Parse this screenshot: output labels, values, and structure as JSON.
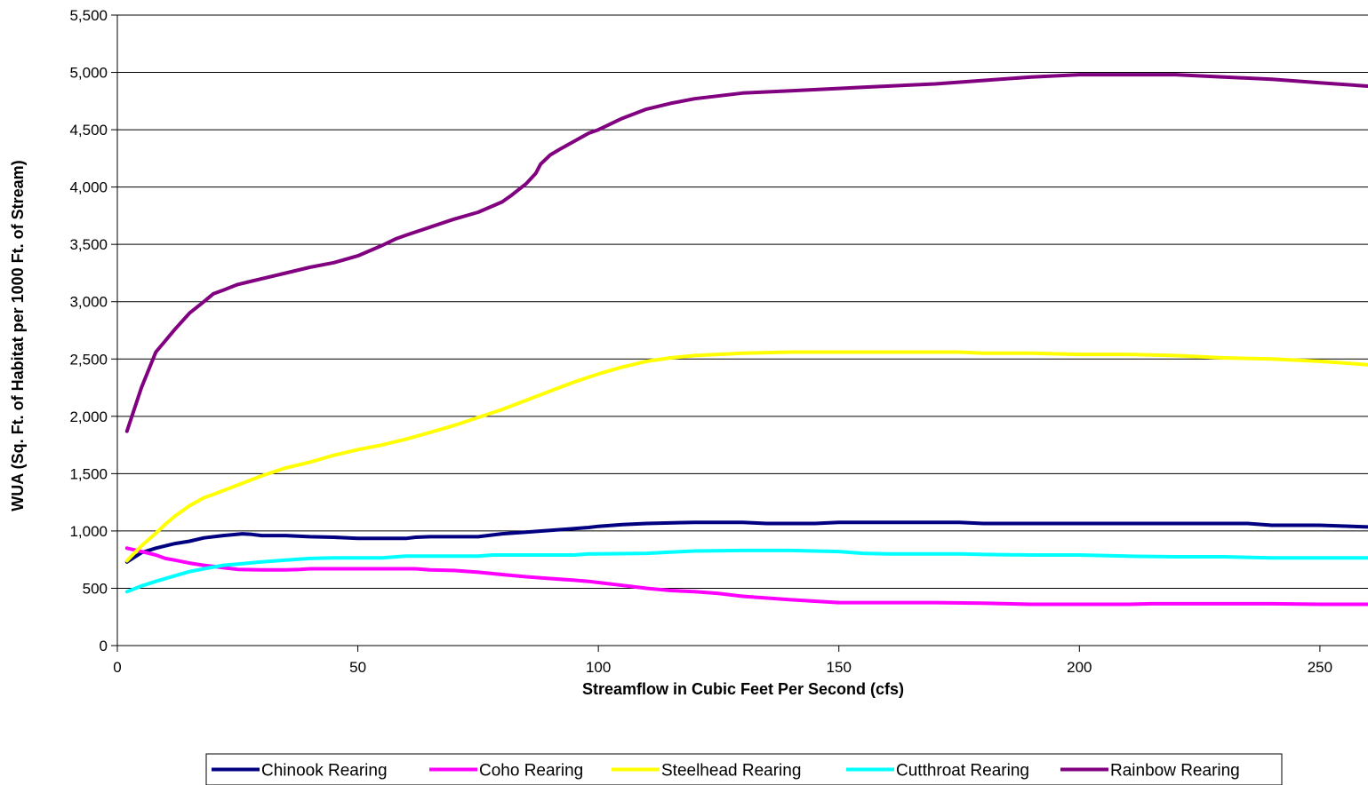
{
  "chart_data": {
    "type": "line",
    "xlabel": "Streamflow in Cubic Feet Per Second (cfs)",
    "ylabel": "WUA (Sq. Ft. of Habitat per 1000 Ft. of Stream)",
    "xlim": [
      0,
      260
    ],
    "ylim": [
      0,
      5500
    ],
    "xticks": [
      0,
      50,
      100,
      150,
      200,
      250
    ],
    "yticks": [
      0,
      500,
      1000,
      1500,
      2000,
      2500,
      3000,
      3500,
      4000,
      4500,
      5000,
      5500
    ],
    "xtick_labels": [
      "0",
      "50",
      "100",
      "150",
      "200",
      "250"
    ],
    "ytick_labels": [
      "0",
      "500",
      "1,000",
      "1,500",
      "2,000",
      "2,500",
      "3,000",
      "3,500",
      "4,000",
      "4,500",
      "5,000",
      "5,500"
    ],
    "grid": "horizontal",
    "legend_position": "bottom",
    "series": [
      {
        "name": "Chinook Rearing",
        "color": "#000080",
        "x": [
          2,
          5,
          8,
          12,
          15,
          18,
          22,
          26,
          28,
          30,
          35,
          40,
          45,
          50,
          55,
          60,
          62,
          65,
          70,
          75,
          80,
          85,
          90,
          95,
          98,
          100,
          105,
          110,
          120,
          130,
          135,
          140,
          145,
          150,
          160,
          170,
          175,
          180,
          190,
          200,
          210,
          220,
          230,
          235,
          240,
          250,
          260
        ],
        "y": [
          730,
          810,
          850,
          890,
          910,
          940,
          960,
          975,
          970,
          960,
          960,
          950,
          945,
          935,
          935,
          935,
          945,
          950,
          950,
          950,
          975,
          990,
          1005,
          1020,
          1030,
          1040,
          1055,
          1065,
          1075,
          1075,
          1065,
          1065,
          1065,
          1075,
          1075,
          1075,
          1075,
          1065,
          1065,
          1065,
          1065,
          1065,
          1065,
          1065,
          1050,
          1050,
          1035
        ]
      },
      {
        "name": "Coho Rearing",
        "color": "#FF00FF",
        "x": [
          2,
          5,
          8,
          10,
          12,
          15,
          18,
          20,
          25,
          30,
          35,
          38,
          40,
          50,
          60,
          62,
          65,
          70,
          75,
          80,
          85,
          90,
          95,
          98,
          100,
          105,
          110,
          115,
          120,
          125,
          130,
          140,
          150,
          160,
          170,
          180,
          190,
          200,
          210,
          215,
          220,
          230,
          240,
          250,
          260
        ],
        "y": [
          850,
          820,
          790,
          760,
          745,
          720,
          700,
          690,
          665,
          660,
          660,
          665,
          670,
          670,
          670,
          670,
          660,
          655,
          640,
          620,
          600,
          585,
          570,
          560,
          550,
          525,
          500,
          480,
          470,
          455,
          430,
          400,
          375,
          375,
          375,
          370,
          360,
          360,
          360,
          365,
          365,
          365,
          365,
          360,
          360
        ]
      },
      {
        "name": "Steelhead Rearing",
        "color": "#FFFF00",
        "x": [
          2,
          5,
          8,
          10,
          12,
          15,
          18,
          20,
          25,
          30,
          35,
          40,
          45,
          50,
          55,
          60,
          65,
          70,
          75,
          80,
          85,
          90,
          95,
          100,
          105,
          110,
          115,
          120,
          130,
          140,
          150,
          160,
          170,
          175,
          180,
          190,
          200,
          210,
          220,
          230,
          240,
          250,
          260
        ],
        "y": [
          740,
          870,
          980,
          1060,
          1130,
          1220,
          1290,
          1320,
          1400,
          1480,
          1550,
          1600,
          1660,
          1710,
          1750,
          1800,
          1860,
          1920,
          1990,
          2060,
          2140,
          2220,
          2300,
          2370,
          2430,
          2480,
          2510,
          2530,
          2550,
          2560,
          2560,
          2560,
          2560,
          2560,
          2550,
          2550,
          2540,
          2540,
          2530,
          2510,
          2500,
          2480,
          2450
        ]
      },
      {
        "name": "Cutthroat Rearing",
        "color": "#00FFFF",
        "x": [
          2,
          5,
          8,
          12,
          15,
          18,
          22,
          26,
          30,
          35,
          40,
          45,
          50,
          55,
          58,
          60,
          70,
          75,
          78,
          80,
          90,
          95,
          98,
          100,
          110,
          115,
          120,
          130,
          140,
          145,
          150,
          155,
          160,
          170,
          175,
          180,
          190,
          200,
          210,
          220,
          230,
          240,
          250,
          260
        ],
        "y": [
          470,
          520,
          560,
          610,
          645,
          670,
          700,
          715,
          730,
          745,
          760,
          765,
          765,
          765,
          775,
          780,
          780,
          780,
          790,
          790,
          790,
          790,
          800,
          800,
          805,
          815,
          825,
          830,
          830,
          825,
          820,
          805,
          800,
          800,
          800,
          795,
          790,
          790,
          780,
          775,
          775,
          765,
          765,
          765
        ]
      },
      {
        "name": "Rainbow Rearing",
        "color": "#800080",
        "x": [
          2,
          5,
          8,
          10,
          12,
          15,
          18,
          20,
          22,
          25,
          28,
          30,
          35,
          40,
          45,
          50,
          55,
          58,
          60,
          65,
          70,
          75,
          80,
          82,
          85,
          87,
          88,
          90,
          92,
          95,
          98,
          100,
          105,
          110,
          115,
          120,
          130,
          140,
          150,
          155,
          160,
          170,
          180,
          190,
          200,
          210,
          220,
          230,
          240,
          250,
          260
        ],
        "y": [
          1870,
          2250,
          2560,
          2660,
          2760,
          2900,
          3000,
          3070,
          3100,
          3150,
          3180,
          3200,
          3250,
          3300,
          3340,
          3400,
          3490,
          3550,
          3580,
          3650,
          3720,
          3780,
          3870,
          3930,
          4030,
          4120,
          4200,
          4280,
          4330,
          4400,
          4470,
          4500,
          4600,
          4680,
          4730,
          4770,
          4820,
          4840,
          4860,
          4870,
          4880,
          4900,
          4930,
          4960,
          4980,
          4980,
          4980,
          4960,
          4940,
          4910,
          4880
        ]
      }
    ]
  }
}
